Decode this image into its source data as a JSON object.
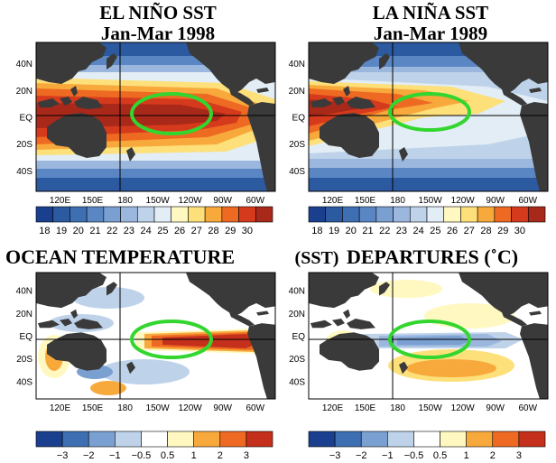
{
  "titles": {
    "el_nino": "EL NIÑO SST",
    "el_nino_period": "Jan-Mar 1998",
    "la_nina": "LA NIÑA SST",
    "la_nina_period": "Jan-Mar 1989",
    "bottom_left": "OCEAN TEMPERATURE",
    "bottom_mid": "(SST)",
    "bottom_right": "DEPARTURES (˚C)"
  },
  "lat_ticks": [
    "40N",
    "20N",
    "EQ",
    "20S",
    "40S"
  ],
  "lon_ticks": [
    "120E",
    "150E",
    "180",
    "150W",
    "120W",
    "90W",
    "60W"
  ],
  "sst_colorbar": {
    "labels": [
      "18",
      "19",
      "20",
      "21",
      "22",
      "23",
      "24",
      "25",
      "26",
      "27",
      "28",
      "29",
      "30"
    ],
    "colors": [
      "#1b3f8f",
      "#2c5aa0",
      "#3e6fb3",
      "#5a87c4",
      "#7a9fd1",
      "#9bb7de",
      "#bed3ea",
      "#e2edf5",
      "#fff8c0",
      "#fde07a",
      "#f8a93c",
      "#ee6a23",
      "#d63a1c",
      "#a8281a"
    ]
  },
  "anomaly_colorbar": {
    "labels": [
      "−3",
      "−2",
      "−1",
      "−0.5",
      "0.5",
      "1",
      "2",
      "3"
    ],
    "colors": [
      "#1b3f8f",
      "#3e6fb3",
      "#7a9fd1",
      "#bed3ea",
      "#ffffff",
      "#fff8c0",
      "#f8a93c",
      "#ee6a23",
      "#c4301b"
    ]
  },
  "colors": {
    "land": "#3a3a3a",
    "highlight_ellipse": "#32d62e"
  }
}
